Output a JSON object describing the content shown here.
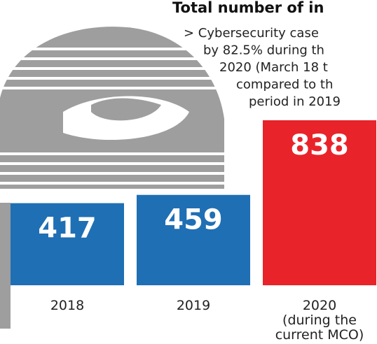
{
  "chart_data": {
    "type": "bar",
    "title": "Total number of in",
    "annotation": [
      "> Cybersecurity case",
      "by 82.5% during th",
      "2020 (March 18 t",
      "compared to th",
      "period in 2019"
    ],
    "categories": [
      "2018",
      "2019",
      "2020\n(during the\ncurrent MCO)"
    ],
    "values": [
      417,
      459,
      838
    ],
    "colors": [
      "#1f6fb4",
      "#1f6fb4",
      "#e8242a"
    ]
  }
}
